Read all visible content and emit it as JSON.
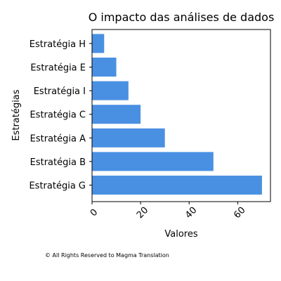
{
  "chart_data": {
    "type": "bar",
    "orientation": "horizontal",
    "title": "O impacto das análises de dados",
    "xlabel": "Valores",
    "ylabel": "Estratégias",
    "categories": [
      "Estratégia G",
      "Estratégia B",
      "Estratégia A",
      "Estratégia C",
      "Estratégia I",
      "Estratégia E",
      "Estratégia H"
    ],
    "values": [
      70,
      50,
      30,
      20,
      15,
      10,
      5
    ],
    "xlim": [
      0,
      73.5
    ],
    "xticks": [
      0,
      20,
      40,
      60
    ],
    "bar_color": "#4a90e2",
    "grid": false
  },
  "footer": {
    "copyright": "© All Rights Reserved to Magma Translation"
  }
}
